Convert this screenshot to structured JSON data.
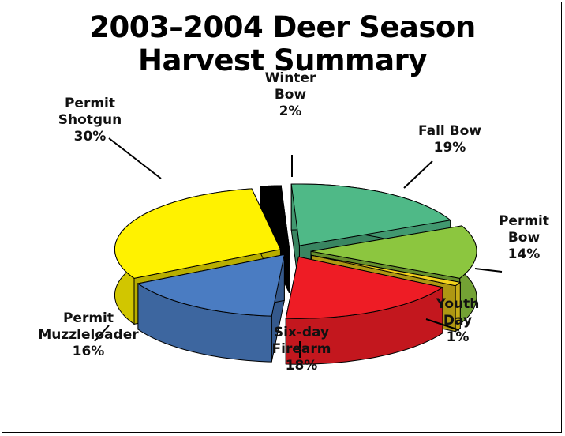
{
  "chart_data": {
    "type": "pie",
    "title_lines": [
      "2003–2004 Deer Season",
      "Harvest Summary"
    ],
    "slices": [
      {
        "label_lines": [
          "Winter",
          "Bow",
          "2%"
        ],
        "value": 2,
        "color": "#000000"
      },
      {
        "label_lines": [
          "Fall Bow",
          "19%"
        ],
        "value": 19,
        "color": "#4fb987"
      },
      {
        "label_lines": [
          "Permit",
          "Bow",
          "14%"
        ],
        "value": 14,
        "color": "#8cc63f"
      },
      {
        "label_lines": [
          "Youth",
          "Day",
          "1%"
        ],
        "value": 1,
        "color": "#f2d21b"
      },
      {
        "label_lines": [
          "Six-day",
          "Firearm",
          "18%"
        ],
        "value": 18,
        "color": "#ee1c25"
      },
      {
        "label_lines": [
          "Permit",
          "Muzzleloader",
          "16%"
        ],
        "value": 16,
        "color": "#4a7cc2"
      },
      {
        "label_lines": [
          "Permit",
          "Shotgun",
          "30%"
        ],
        "value": 30,
        "color": "#fff200"
      }
    ]
  }
}
